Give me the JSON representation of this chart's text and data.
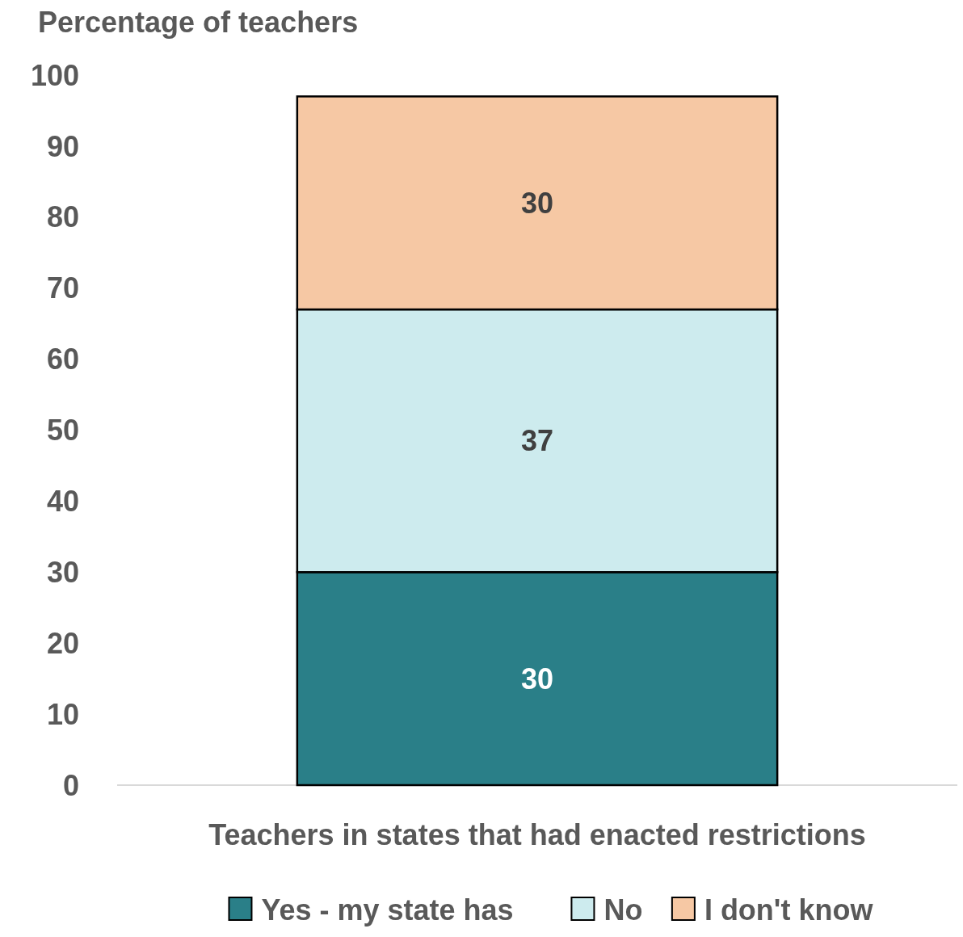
{
  "chart_data": {
    "type": "bar",
    "stacked": true,
    "ylabel": "Percentage of teachers",
    "categories": [
      "Teachers in states that had enacted restrictions"
    ],
    "series": [
      {
        "name": "Yes - my state has",
        "color": "#2a7f88",
        "values": [
          30
        ]
      },
      {
        "name": "No",
        "color": "#cdebee",
        "values": [
          37
        ]
      },
      {
        "name": "I don't know",
        "color": "#f6c8a4",
        "values": [
          30
        ]
      }
    ],
    "ylim": [
      0,
      100
    ],
    "yticks": [
      0,
      10,
      20,
      30,
      40,
      50,
      60,
      70,
      80,
      90,
      100
    ],
    "grid": false,
    "legend": "bottom",
    "data_labels": true
  }
}
